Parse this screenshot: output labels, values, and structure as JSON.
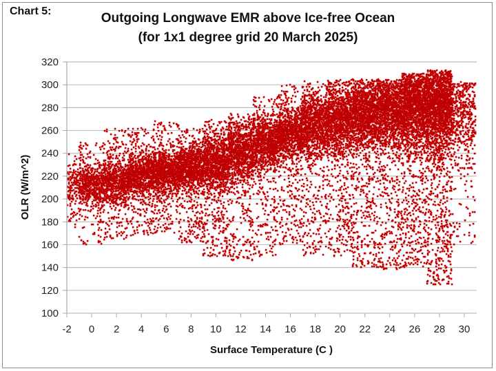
{
  "chart_label": "Chart 5:",
  "chart_data": {
    "type": "scatter",
    "title": "Outgoing Longwave EMR above Ice-free Ocean",
    "subtitle": "(for 1x1 degree grid 20 March 2025)",
    "xlabel": "Surface Temperature (C )",
    "ylabel": "OLR (W/m^2)",
    "xlim": [
      -2,
      31
    ],
    "ylim": [
      100,
      320
    ],
    "xticks": [
      -2,
      0,
      2,
      4,
      6,
      8,
      10,
      12,
      14,
      16,
      18,
      20,
      22,
      24,
      26,
      28,
      30
    ],
    "yticks": [
      100,
      120,
      140,
      160,
      180,
      200,
      220,
      240,
      260,
      280,
      300,
      320
    ],
    "grid": "horizontal",
    "legend": "none",
    "marker_color": "#C00000",
    "series_description": "Dense scatter of ocean grid cells; per-temperature band summary of the point cloud (approximate, W/m^2)",
    "bands": [
      {
        "x": -2,
        "center": 212,
        "spread": 14,
        "min": 175,
        "max": 240,
        "density": 50
      },
      {
        "x": 0,
        "center": 212,
        "spread": 15,
        "min": 160,
        "max": 250,
        "density": 110
      },
      {
        "x": 2,
        "center": 215,
        "spread": 16,
        "min": 165,
        "max": 262,
        "density": 130
      },
      {
        "x": 4,
        "center": 222,
        "spread": 15,
        "min": 168,
        "max": 262,
        "density": 150
      },
      {
        "x": 6,
        "center": 223,
        "spread": 15,
        "min": 170,
        "max": 268,
        "density": 160
      },
      {
        "x": 8,
        "center": 228,
        "spread": 17,
        "min": 160,
        "max": 262,
        "density": 170
      },
      {
        "x": 10,
        "center": 232,
        "spread": 20,
        "min": 150,
        "max": 270,
        "density": 180
      },
      {
        "x": 12,
        "center": 242,
        "spread": 22,
        "min": 145,
        "max": 275,
        "density": 170
      },
      {
        "x": 14,
        "center": 250,
        "spread": 20,
        "min": 150,
        "max": 290,
        "density": 170
      },
      {
        "x": 16,
        "center": 258,
        "spread": 20,
        "min": 160,
        "max": 300,
        "density": 180
      },
      {
        "x": 18,
        "center": 265,
        "spread": 22,
        "min": 150,
        "max": 303,
        "density": 190
      },
      {
        "x": 20,
        "center": 270,
        "spread": 24,
        "min": 150,
        "max": 305,
        "density": 210
      },
      {
        "x": 22,
        "center": 276,
        "spread": 26,
        "min": 140,
        "max": 305,
        "density": 230
      },
      {
        "x": 24,
        "center": 280,
        "spread": 28,
        "min": 138,
        "max": 305,
        "density": 240
      },
      {
        "x": 26,
        "center": 285,
        "spread": 32,
        "min": 140,
        "max": 310,
        "density": 300
      },
      {
        "x": 28,
        "center": 283,
        "spread": 35,
        "min": 125,
        "max": 313,
        "density": 320
      },
      {
        "x": 30,
        "center": 275,
        "spread": 35,
        "min": 160,
        "max": 303,
        "density": 90
      }
    ]
  }
}
